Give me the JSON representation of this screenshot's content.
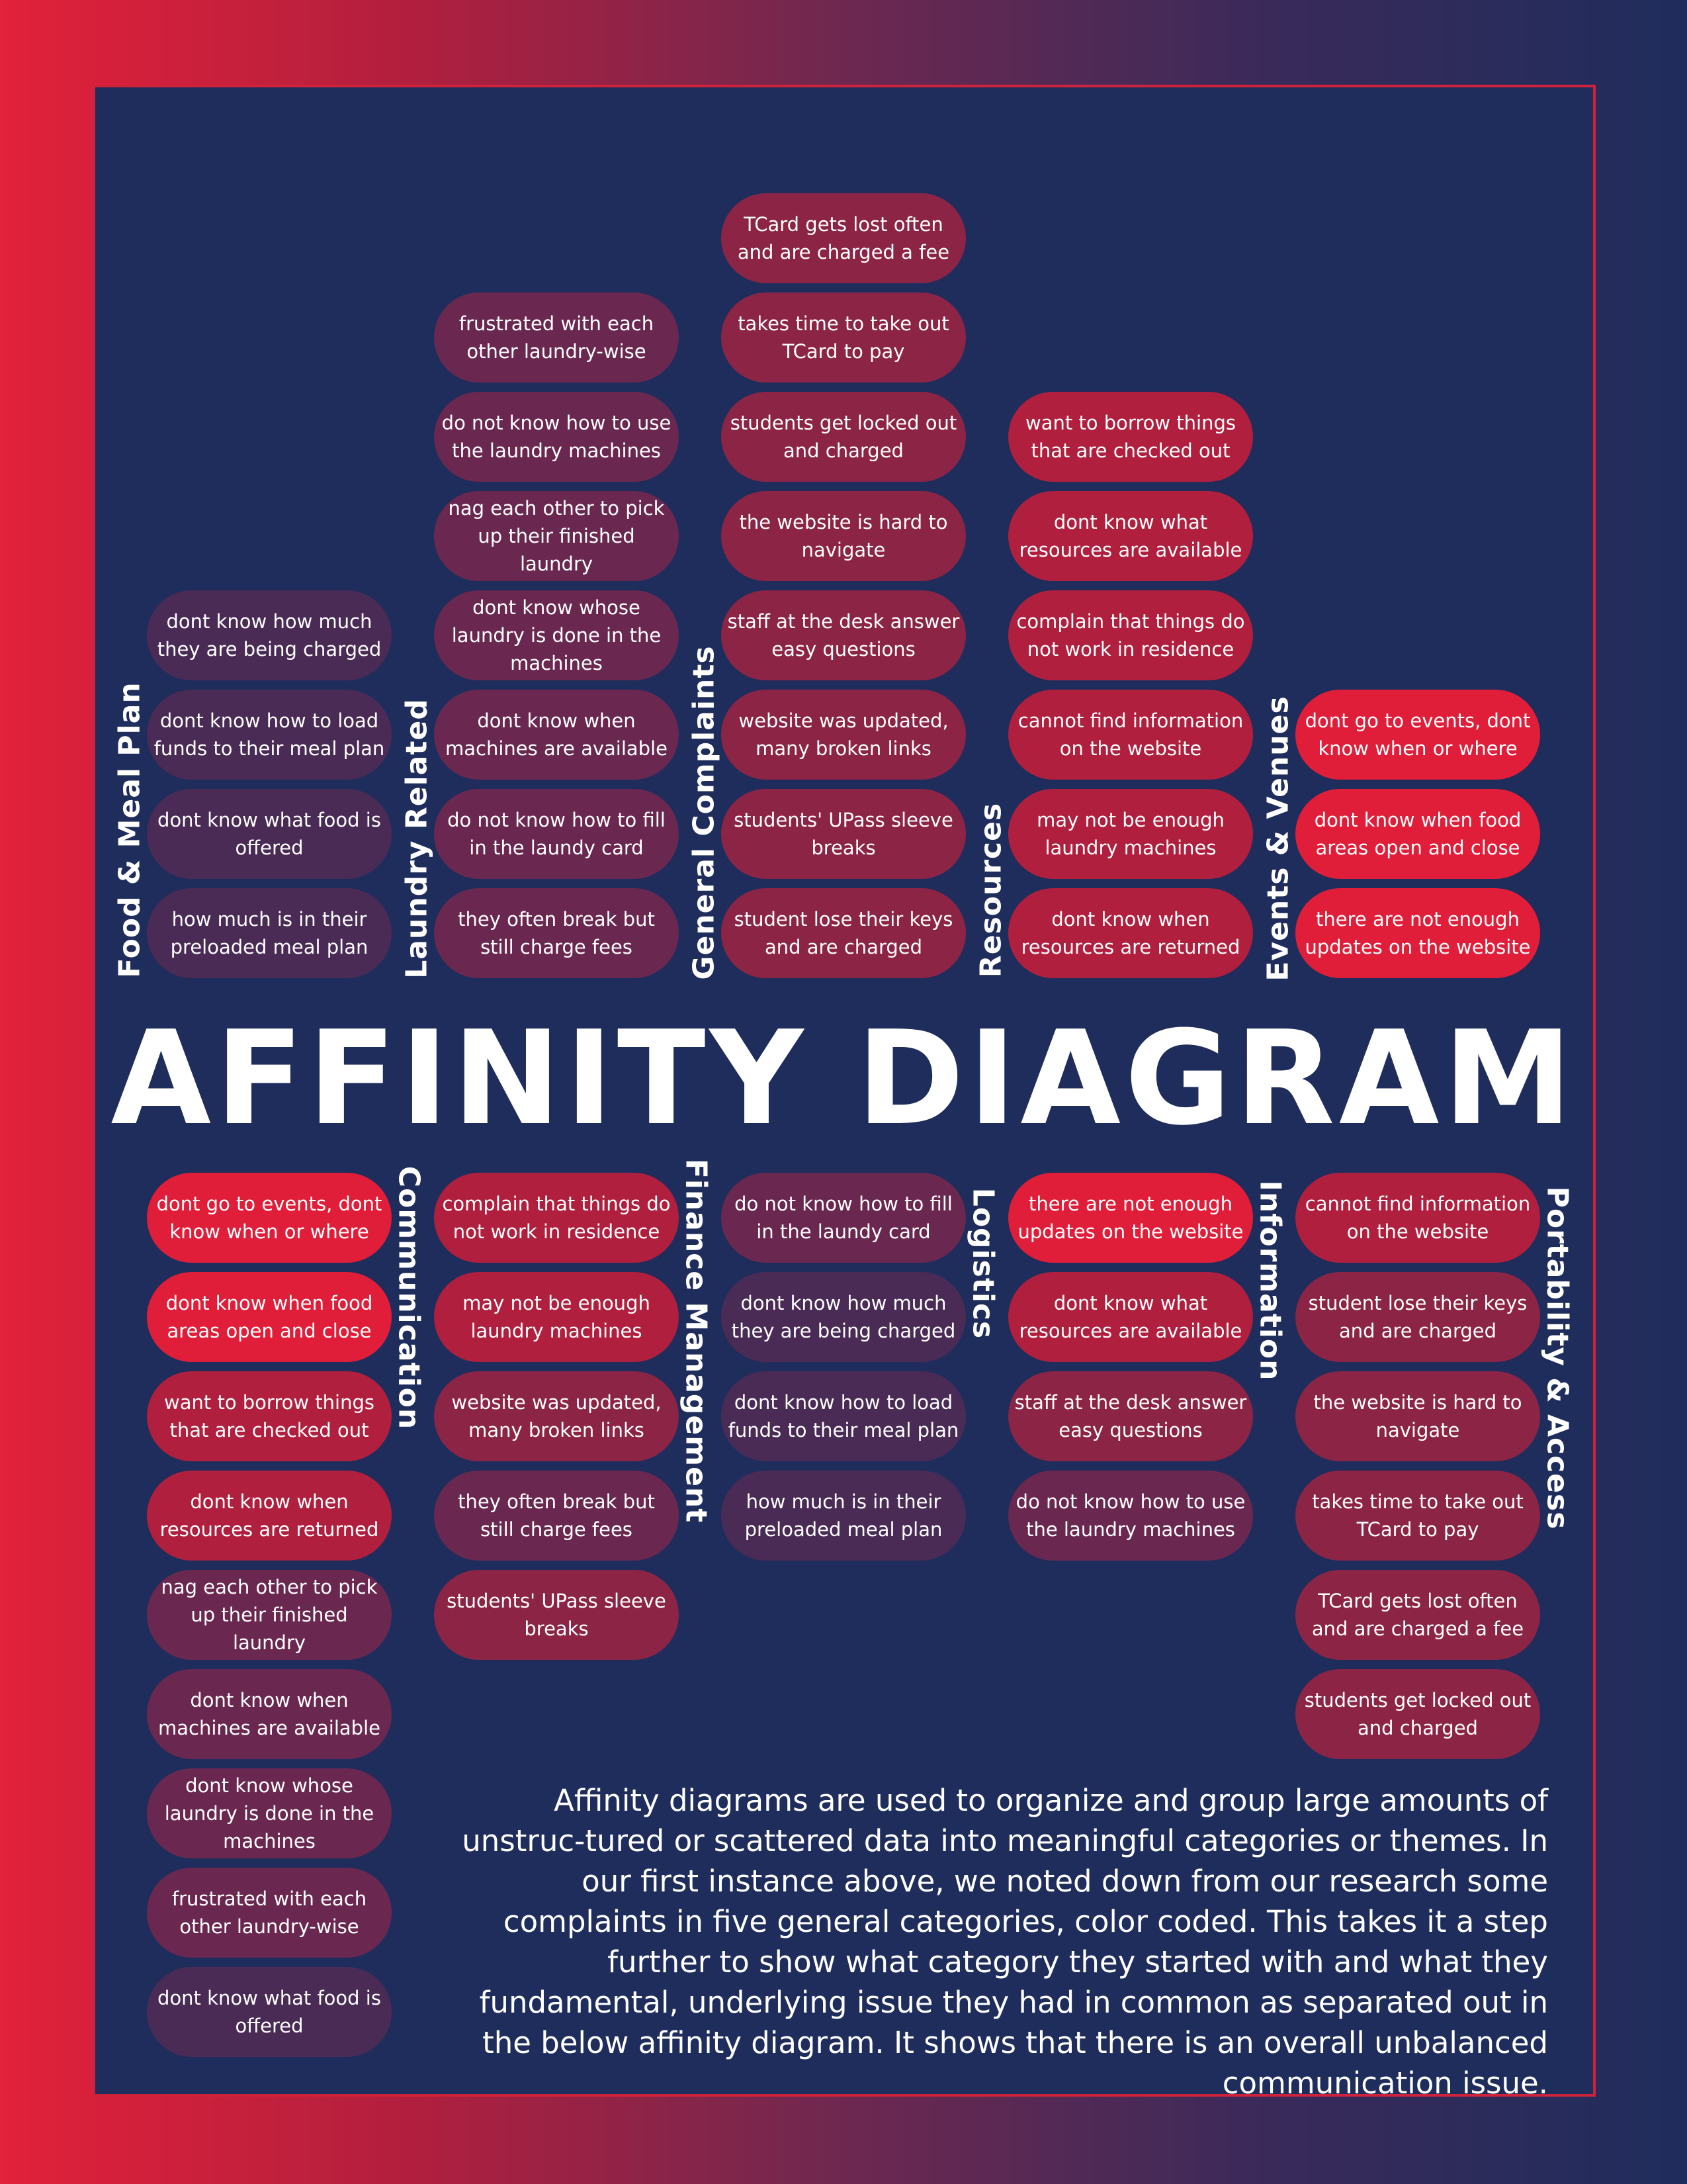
{
  "title": "AFFINITY DIAGRAM",
  "description": "Affinity diagrams are used to organize and group large amounts of unstruc-tured or scattered data into meaningful categories or themes. In our first instance above, we noted down from our research some complaints in five general categories, color coded. This takes it a step further to show what category they started with and what they fundamental, underlying issue they had in common as separated out in the below affinity diagram. It shows that there is an overall unbalanced communication issue.",
  "colors": {
    "food": "#4a2b55",
    "laundry": "#6a2850",
    "general": "#8c2446",
    "resources": "#b01f3e",
    "events": "#e01e39",
    "background": "#1f2d5c",
    "border": "#d0223a"
  },
  "top_groups": [
    {
      "label": "Food & Meal Plan",
      "color": "food",
      "items": [
        "dont know how much they are being charged",
        "dont know how to load funds to their meal plan",
        "dont know what food is offered",
        "how much is in their preloaded meal plan"
      ]
    },
    {
      "label": "Laundry Related",
      "color": "laundry",
      "items": [
        "frustrated with each other laundry-wise",
        "do not know how to use the laundry machines",
        "nag each other to pick up their finished laundry",
        "dont know whose laundry is done in the machines",
        "dont know when machines are available",
        "do not know how to fill in the laundy card",
        "they often break but still charge fees"
      ]
    },
    {
      "label": "General Complaints",
      "color": "general",
      "items": [
        "TCard gets lost often and are charged a fee",
        "takes time to take out TCard to pay",
        "students get locked out and charged",
        "the website is hard to navigate",
        "staff at the desk answer easy questions",
        "website was updated, many broken links",
        "students' UPass sleeve breaks",
        "student lose their keys and are charged"
      ]
    },
    {
      "label": "Resources",
      "color": "resources",
      "items": [
        "want to borrow things that are checked out",
        "dont know what resources are available",
        "complain that things do not work in residence",
        "cannot find information on the website",
        "may not be enough laundry machines",
        "dont know when resources are returned"
      ]
    },
    {
      "label": "Events & Venues",
      "color": "events",
      "items": [
        "dont go to events, dont know when or where",
        "dont know when food areas open and close",
        "there are not enough updates on the website"
      ]
    }
  ],
  "bottom_groups": [
    {
      "label": "Communication",
      "items": [
        {
          "text": "dont go to events, dont know when or where",
          "color": "events"
        },
        {
          "text": "dont know when food areas open and close",
          "color": "events"
        },
        {
          "text": "want to borrow things that are checked out",
          "color": "resources"
        },
        {
          "text": "dont know when resources are returned",
          "color": "resources"
        },
        {
          "text": "nag each other to pick up their finished laundry",
          "color": "laundry"
        },
        {
          "text": "dont know when machines are available",
          "color": "laundry"
        },
        {
          "text": "dont know whose laundry is done in the machines",
          "color": "laundry"
        },
        {
          "text": "frustrated with each other laundry-wise",
          "color": "laundry"
        },
        {
          "text": "dont know what food is offered",
          "color": "food"
        }
      ]
    },
    {
      "label": "Finance Management",
      "items": [
        {
          "text": "complain that things do not work in residence",
          "color": "resources"
        },
        {
          "text": "may not be enough laundry machines",
          "color": "resources"
        },
        {
          "text": "website was updated, many broken links",
          "color": "general"
        },
        {
          "text": "they often break but still charge fees",
          "color": "laundry"
        },
        {
          "text": "students' UPass sleeve breaks",
          "color": "general"
        }
      ]
    },
    {
      "label": "Logistics",
      "items": [
        {
          "text": "do not know how to fill in the laundy card",
          "color": "laundry"
        },
        {
          "text": "dont know how much they are being charged",
          "color": "food"
        },
        {
          "text": "dont know how to load funds to their meal plan",
          "color": "food"
        },
        {
          "text": "how much is in their preloaded meal plan",
          "color": "food"
        }
      ]
    },
    {
      "label": "Information",
      "items": [
        {
          "text": "there are not enough updates on the website",
          "color": "events"
        },
        {
          "text": "dont know what resources are available",
          "color": "resources"
        },
        {
          "text": "staff at the desk answer easy questions",
          "color": "general"
        },
        {
          "text": "do not know how to use the laundry machines",
          "color": "laundry"
        }
      ]
    },
    {
      "label": "Portability & Access",
      "items": [
        {
          "text": "cannot find information on the website",
          "color": "resources"
        },
        {
          "text": "student lose their keys and are charged",
          "color": "general"
        },
        {
          "text": "the website is hard to navigate",
          "color": "general"
        },
        {
          "text": "takes time to take out TCard to pay",
          "color": "general"
        },
        {
          "text": "TCard gets lost often and are charged a fee",
          "color": "general"
        },
        {
          "text": "students get locked out and charged",
          "color": "general"
        }
      ]
    }
  ]
}
